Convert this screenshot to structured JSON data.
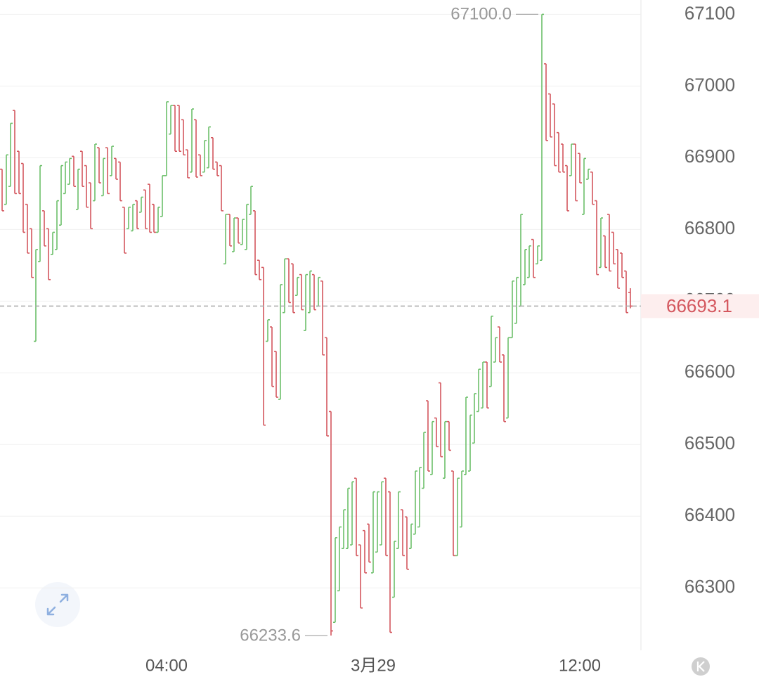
{
  "chart_data": {
    "type": "ohlc",
    "up_color": "#6cbf6a",
    "down_color": "#d4575e",
    "ylim": [
      66213,
      67120
    ],
    "yticks": [
      66300,
      66400,
      66500,
      66600,
      66700,
      66800,
      66900,
      67000,
      67100
    ],
    "grid": true,
    "last_price": 66693.1,
    "annotations": [
      {
        "value": 67100,
        "label": "67100.0",
        "index": 128
      },
      {
        "value": 66233.6,
        "label": "66233.6",
        "index": 78
      }
    ],
    "xticks": [
      {
        "value": 39,
        "label": "04:00"
      },
      {
        "value": 88,
        "label": "3月29"
      },
      {
        "value": 137,
        "label": "12:00"
      }
    ],
    "ohlc": [
      [
        66884,
        66884,
        66826,
        66826
      ],
      [
        66835,
        66904,
        66835,
        66904
      ],
      [
        66860,
        66948,
        66860,
        66948
      ],
      [
        66966,
        66966,
        66850,
        66850
      ],
      [
        66909,
        66909,
        66850,
        66850
      ],
      [
        66892,
        66892,
        66796,
        66796
      ],
      [
        66835,
        66835,
        66767,
        66767
      ],
      [
        66801,
        66801,
        66733,
        66733
      ],
      [
        66644,
        66772,
        66644,
        66772
      ],
      [
        66755,
        66889,
        66755,
        66889
      ],
      [
        66826,
        66826,
        66777,
        66777
      ],
      [
        66801,
        66801,
        66730,
        66730
      ],
      [
        66765,
        66796,
        66765,
        66796
      ],
      [
        66772,
        66840,
        66772,
        66840
      ],
      [
        66806,
        66889,
        66806,
        66889
      ],
      [
        66850,
        66894,
        66850,
        66894
      ],
      [
        66863,
        66899,
        66863,
        66899
      ],
      [
        66902,
        66902,
        66860,
        66860
      ],
      [
        66828,
        66884,
        66828,
        66884
      ],
      [
        66909,
        66909,
        66860,
        66860
      ],
      [
        66889,
        66889,
        66831,
        66831
      ],
      [
        66865,
        66865,
        66801,
        66801
      ],
      [
        66840,
        66919,
        66840,
        66919
      ],
      [
        66914,
        66914,
        66865,
        66865
      ],
      [
        66847,
        66899,
        66847,
        66899
      ],
      [
        66914,
        66914,
        66850,
        66850
      ],
      [
        66875,
        66916,
        66875,
        66916
      ],
      [
        66899,
        66899,
        66870,
        66870
      ],
      [
        66894,
        66894,
        66840,
        66840
      ],
      [
        66831,
        66831,
        66767,
        66767
      ],
      [
        66801,
        66831,
        66801,
        66831
      ],
      [
        66798,
        66835,
        66798,
        66835
      ],
      [
        66840,
        66840,
        66801,
        66801
      ],
      [
        66824,
        66845,
        66824,
        66845
      ],
      [
        66855,
        66855,
        66801,
        66801
      ],
      [
        66863,
        66863,
        66796,
        66796
      ],
      [
        66835,
        66835,
        66796,
        66796
      ],
      [
        66796,
        66831,
        66796,
        66831
      ],
      [
        66818,
        66875,
        66818,
        66875
      ],
      [
        66875,
        66978,
        66875,
        66978
      ],
      [
        66933,
        66973,
        66933,
        66973
      ],
      [
        66973,
        66973,
        66909,
        66909
      ],
      [
        66973,
        66973,
        66909,
        66909
      ],
      [
        66953,
        66953,
        66904,
        66904
      ],
      [
        66911,
        66911,
        66872,
        66872
      ],
      [
        66880,
        66968,
        66880,
        66968
      ],
      [
        66953,
        66953,
        66873,
        66873
      ],
      [
        66904,
        66904,
        66875,
        66875
      ],
      [
        66880,
        66924,
        66880,
        66924
      ],
      [
        66886,
        66943,
        66886,
        66943
      ],
      [
        66928,
        66928,
        66884,
        66884
      ],
      [
        66894,
        66894,
        66875,
        66875
      ],
      [
        66889,
        66889,
        66826,
        66826
      ],
      [
        66752,
        66821,
        66752,
        66821
      ],
      [
        66821,
        66821,
        66777,
        66777
      ],
      [
        66769,
        66816,
        66769,
        66816
      ],
      [
        66816,
        66816,
        66781,
        66781
      ],
      [
        66779,
        66814,
        66779,
        66814
      ],
      [
        66772,
        66835,
        66772,
        66835
      ],
      [
        66821,
        66860,
        66821,
        66860
      ],
      [
        66826,
        66826,
        66737,
        66737
      ],
      [
        66757,
        66757,
        66730,
        66730
      ],
      [
        66747,
        66747,
        66527,
        66527
      ],
      [
        66644,
        66674,
        66644,
        66674
      ],
      [
        66664,
        66664,
        66581,
        66581
      ],
      [
        66630,
        66630,
        66566,
        66566
      ],
      [
        66563,
        66723,
        66563,
        66723
      ],
      [
        66684,
        66759,
        66684,
        66759
      ],
      [
        66759,
        66759,
        66698,
        66698
      ],
      [
        66752,
        66752,
        66684,
        66684
      ],
      [
        66708,
        66733,
        66708,
        66733
      ],
      [
        66737,
        66737,
        66688,
        66688
      ],
      [
        66659,
        66737,
        66659,
        66737
      ],
      [
        66684,
        66742,
        66684,
        66742
      ],
      [
        66737,
        66737,
        66688,
        66688
      ],
      [
        66693,
        66733,
        66693,
        66733
      ],
      [
        66728,
        66728,
        66625,
        66625
      ],
      [
        66649,
        66649,
        66512,
        66512
      ],
      [
        66546,
        66546,
        66233.6,
        66240
      ],
      [
        66252,
        66370,
        66252,
        66370
      ],
      [
        66296,
        66385,
        66296,
        66385
      ],
      [
        66355,
        66409,
        66355,
        66409
      ],
      [
        66355,
        66439,
        66355,
        66439
      ],
      [
        66360,
        66448,
        66360,
        66448
      ],
      [
        66453,
        66453,
        66345,
        66345
      ],
      [
        66360,
        66360,
        66272,
        66272
      ],
      [
        66380,
        66380,
        66321,
        66321
      ],
      [
        66389,
        66389,
        66336,
        66336
      ],
      [
        66321,
        66434,
        66321,
        66434
      ],
      [
        66350,
        66434,
        66350,
        66434
      ],
      [
        66360,
        66448,
        66360,
        66448
      ],
      [
        66453,
        66453,
        66345,
        66345
      ],
      [
        66434,
        66434,
        66238,
        66238
      ],
      [
        66287,
        66365,
        66287,
        66365
      ],
      [
        66355,
        66434,
        66355,
        66434
      ],
      [
        66409,
        66409,
        66345,
        66345
      ],
      [
        66399,
        66399,
        66326,
        66326
      ],
      [
        66355,
        66389,
        66355,
        66389
      ],
      [
        66375,
        66463,
        66375,
        66463
      ],
      [
        66385,
        66468,
        66385,
        66468
      ],
      [
        66439,
        66517,
        66439,
        66517
      ],
      [
        66561,
        66561,
        66463,
        66463
      ],
      [
        66458,
        66532,
        66458,
        66532
      ],
      [
        66537,
        66537,
        66497,
        66497
      ],
      [
        66586,
        66586,
        66483,
        66483
      ],
      [
        66453,
        66532,
        66453,
        66532
      ],
      [
        66532,
        66532,
        66492,
        66492
      ],
      [
        66463,
        66463,
        66345,
        66345
      ],
      [
        66345,
        66453,
        66345,
        66453
      ],
      [
        66385,
        66463,
        66385,
        66463
      ],
      [
        66458,
        66566,
        66458,
        66566
      ],
      [
        66463,
        66541,
        66463,
        66541
      ],
      [
        66502,
        66571,
        66502,
        66571
      ],
      [
        66546,
        66605,
        66546,
        66605
      ],
      [
        66551,
        66615,
        66551,
        66615
      ],
      [
        66615,
        66615,
        66551,
        66551
      ],
      [
        66581,
        66679,
        66581,
        66679
      ],
      [
        66615,
        66649,
        66615,
        66649
      ],
      [
        66664,
        66664,
        66615,
        66615
      ],
      [
        66625,
        66625,
        66532,
        66532
      ],
      [
        66537,
        66649,
        66537,
        66649
      ],
      [
        66649,
        66728,
        66649,
        66728
      ],
      [
        66669,
        66733,
        66669,
        66733
      ],
      [
        66693,
        66821,
        66693,
        66821
      ],
      [
        66723,
        66772,
        66723,
        66772
      ],
      [
        66733,
        66777,
        66733,
        66777
      ],
      [
        66786,
        66786,
        66733,
        66733
      ],
      [
        66752,
        66777,
        66752,
        66777
      ],
      [
        66757,
        67100,
        66757,
        67100
      ],
      [
        67031,
        67031,
        66924,
        66924
      ],
      [
        66989,
        66989,
        66929,
        66929
      ],
      [
        66975,
        66975,
        66889,
        66889
      ],
      [
        66935,
        66935,
        66880,
        66880
      ],
      [
        66919,
        66919,
        66880,
        66880
      ],
      [
        66889,
        66889,
        66826,
        66826
      ],
      [
        66875,
        66919,
        66875,
        66919
      ],
      [
        66919,
        66919,
        66840,
        66840
      ],
      [
        66906,
        66906,
        66865,
        66865
      ],
      [
        66821,
        66899,
        66821,
        66899
      ],
      [
        66870,
        66884,
        66870,
        66884
      ],
      [
        66880,
        66880,
        66835,
        66835
      ],
      [
        66840,
        66840,
        66737,
        66737
      ],
      [
        66747,
        66816,
        66747,
        66816
      ],
      [
        66791,
        66791,
        66747,
        66747
      ],
      [
        66821,
        66821,
        66742,
        66742
      ],
      [
        66796,
        66796,
        66752,
        66752
      ],
      [
        66772,
        66772,
        66718,
        66718
      ],
      [
        66767,
        66767,
        66733,
        66733
      ],
      [
        66742,
        66742,
        66684,
        66684
      ],
      [
        66712,
        66718,
        66690,
        66693.1
      ]
    ]
  }
}
